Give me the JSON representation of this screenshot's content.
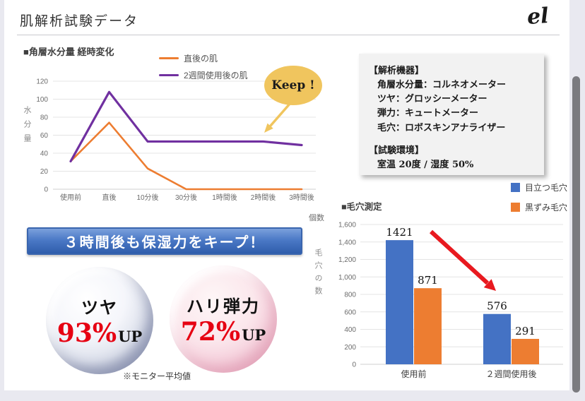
{
  "header": {
    "title": "肌解析試験データ",
    "logo": "el"
  },
  "chart_data": [
    {
      "type": "line",
      "title": "■角層水分量 経時変化",
      "ylabel": "水分量",
      "ylim": [
        0,
        120
      ],
      "ytick_step": 20,
      "grid": true,
      "legend_position": "top",
      "categories": [
        "使用前",
        "直後",
        "10分後",
        "30分後",
        "1時間後",
        "2時間後",
        "3時間後"
      ],
      "series": [
        {
          "name": "直後の肌",
          "color": "#ED7D31",
          "values": [
            31,
            74,
            23,
            0,
            0,
            0,
            0
          ]
        },
        {
          "name": "2週間使用後の肌",
          "color": "#7030A0",
          "values": [
            31,
            108,
            53,
            53,
            53,
            53,
            49
          ]
        }
      ],
      "annotation": "Keep !"
    },
    {
      "type": "bar",
      "title": "■毛穴測定",
      "ylabel_top": "個数",
      "ylabel": "毛穴の数",
      "ylim": [
        0,
        1600
      ],
      "ytick_step": 200,
      "grid": true,
      "legend_position": "top-right",
      "categories": [
        "使用前",
        "２週間使用後"
      ],
      "series": [
        {
          "name": "目立つ毛穴",
          "color": "#4472C4",
          "values": [
            1421,
            576
          ]
        },
        {
          "name": "黒ずみ毛穴",
          "color": "#ED7D31",
          "values": [
            871,
            291
          ]
        }
      ]
    }
  ],
  "analysis_box": {
    "heading_machines": "【解析機器】",
    "items": [
      "角層水分量：コルネオメーター",
      "ツヤ：グロッシーメーター",
      "弾力：キュートメーター",
      "毛穴：ロボスキンアナライザー"
    ],
    "heading_env": "【試験環境】",
    "environment": "室温 20度 / 湿度 50%"
  },
  "banner": {
    "text": "３時間後も保湿力をキープ！"
  },
  "bubbles": [
    {
      "label": "ツヤ",
      "value": "93%",
      "suffix": "UP"
    },
    {
      "label": "ハリ弾力",
      "value": "72%",
      "suffix": "UP"
    }
  ],
  "note": "※モニター平均値",
  "colors": {
    "accent_red": "#e60012",
    "arrow_red": "#e8191f",
    "keep_yellow": "#f0c55e"
  }
}
